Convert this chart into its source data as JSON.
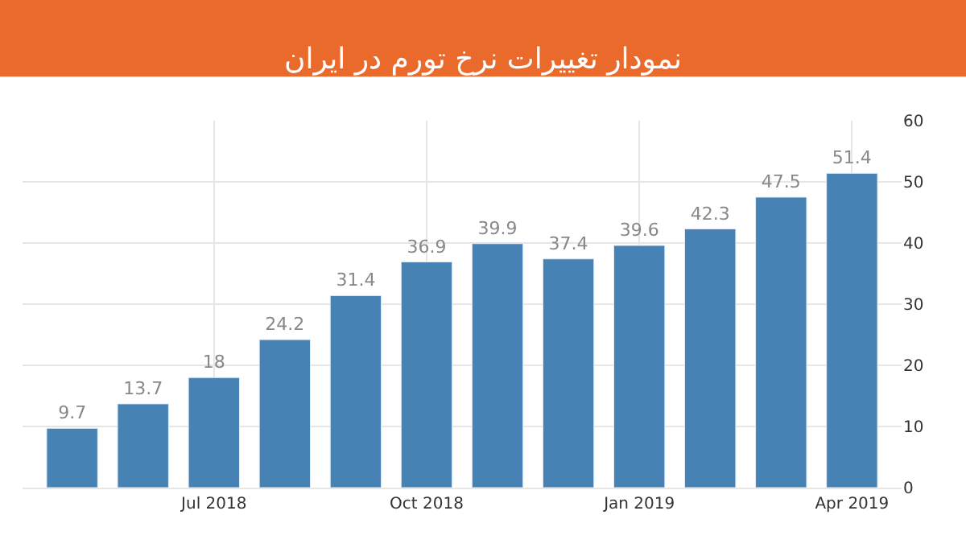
{
  "chart_data": {
    "type": "bar",
    "title": "نمودار تغییرات نرخ تورم در ایران",
    "categories": [
      null,
      null,
      "Jul 2018",
      null,
      null,
      "Oct 2018",
      null,
      null,
      "Jan 2019",
      null,
      null,
      "Apr 2019"
    ],
    "values": [
      9.7,
      13.7,
      18,
      24.2,
      31.4,
      36.9,
      39.9,
      37.4,
      39.6,
      42.3,
      47.5,
      51.4
    ],
    "color": "#4682b4",
    "ylim": [
      0,
      60
    ],
    "yticks": [
      0,
      10,
      20,
      30,
      40,
      50,
      60
    ],
    "grid": true,
    "data_labels": true,
    "legend": false
  }
}
